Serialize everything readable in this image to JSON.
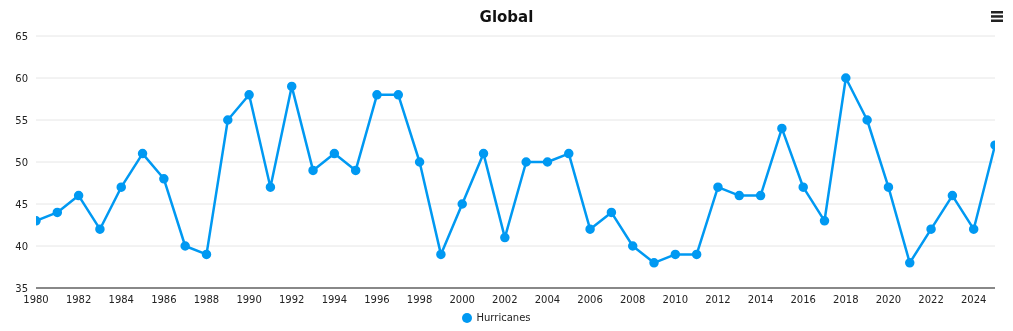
{
  "chart_data": {
    "type": "line",
    "title": "Global",
    "x": [
      1980,
      1981,
      1982,
      1983,
      1984,
      1985,
      1986,
      1987,
      1988,
      1989,
      1990,
      1991,
      1992,
      1993,
      1994,
      1995,
      1996,
      1997,
      1998,
      1999,
      2000,
      2001,
      2002,
      2003,
      2004,
      2005,
      2006,
      2007,
      2008,
      2009,
      2010,
      2011,
      2012,
      2013,
      2014,
      2015,
      2016,
      2017,
      2018,
      2019,
      2020,
      2021,
      2022,
      2023,
      2024,
      2025
    ],
    "series": [
      {
        "name": "Hurricanes",
        "color": "#0099f2",
        "values": [
          43,
          44,
          46,
          42,
          47,
          51,
          48,
          40,
          39,
          55,
          58,
          47,
          59,
          49,
          51,
          49,
          58,
          58,
          50,
          39,
          45,
          51,
          41,
          50,
          50,
          51,
          42,
          44,
          40,
          38,
          39,
          39,
          47,
          46,
          46,
          54,
          47,
          43,
          60,
          55,
          47,
          38,
          42,
          46,
          42,
          52
        ]
      }
    ],
    "xlim": [
      1980,
      2025
    ],
    "xticks": [
      1980,
      1982,
      1984,
      1986,
      1988,
      1990,
      1992,
      1994,
      1996,
      1998,
      2000,
      2002,
      2004,
      2006,
      2008,
      2010,
      2012,
      2014,
      2016,
      2018,
      2020,
      2022,
      2024
    ],
    "ylim": [
      35,
      65
    ],
    "yticks": [
      35,
      40,
      45,
      50,
      55,
      60,
      65
    ],
    "grid": "y",
    "legend": "bottom",
    "marker": "circle",
    "line_style": "solid"
  }
}
